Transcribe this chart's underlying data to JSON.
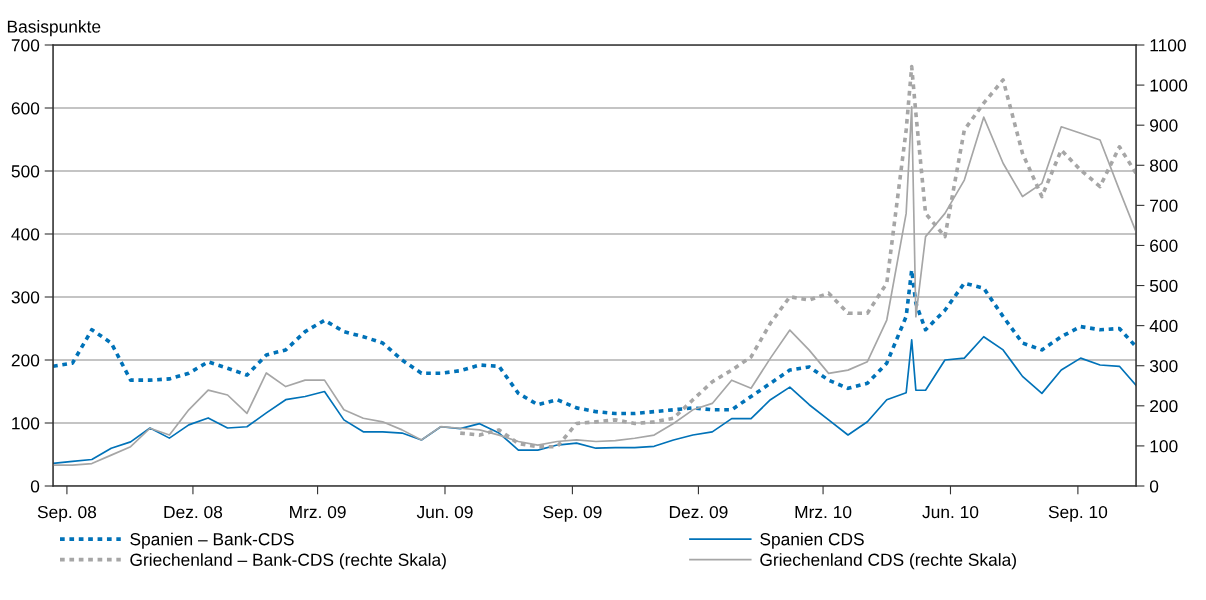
{
  "chart_data": {
    "type": "line",
    "ylabel": "Basispunkte",
    "x": [
      "2008-08-22",
      "2008-09-05",
      "2008-09-19",
      "2008-10-03",
      "2008-10-17",
      "2008-10-31",
      "2008-11-14",
      "2008-11-28",
      "2008-12-12",
      "2008-12-26",
      "2009-01-09",
      "2009-01-23",
      "2009-02-06",
      "2009-02-20",
      "2009-03-06",
      "2009-03-20",
      "2009-04-03",
      "2009-04-17",
      "2009-05-01",
      "2009-05-15",
      "2009-05-29",
      "2009-06-12",
      "2009-06-26",
      "2009-07-10",
      "2009-07-24",
      "2009-08-07",
      "2009-08-21",
      "2009-09-04",
      "2009-09-18",
      "2009-10-02",
      "2009-10-16",
      "2009-10-30",
      "2009-11-13",
      "2009-11-27",
      "2009-12-11",
      "2009-12-25",
      "2010-01-08",
      "2010-01-22",
      "2010-02-05",
      "2010-02-19",
      "2010-03-05",
      "2010-03-19",
      "2010-04-02",
      "2010-04-16",
      "2010-04-30",
      "2010-05-04",
      "2010-05-07",
      "2010-05-14",
      "2010-05-28",
      "2010-06-11",
      "2010-06-25",
      "2010-07-09",
      "2010-07-23",
      "2010-08-06",
      "2010-08-20",
      "2010-09-03",
      "2010-09-17",
      "2010-10-01",
      "2010-10-13"
    ],
    "series": [
      {
        "name": "Spanien – Bank-CDS",
        "color": "#0072b8",
        "line_style": "dotted",
        "values": [
          190,
          195,
          248,
          227,
          168,
          168,
          170,
          179,
          197,
          187,
          176,
          208,
          216,
          245,
          263,
          245,
          237,
          227,
          200,
          179,
          179,
          183,
          192,
          190,
          147,
          129,
          137,
          124,
          118,
          115,
          115,
          118,
          121,
          124,
          121,
          121,
          142,
          163,
          184,
          189,
          168,
          155,
          163,
          195,
          269,
          343,
          290,
          248,
          279,
          322,
          314,
          269,
          227,
          216,
          237,
          253,
          248,
          250,
          221
        ]
      },
      {
        "name": "Griechenland – Bank-CDS (rechte Skala)",
        "color": "#a6a6a6",
        "line_style": "dotted",
        "axis": "y2",
        "values": [
          null,
          null,
          null,
          null,
          null,
          null,
          null,
          null,
          null,
          null,
          null,
          null,
          null,
          null,
          null,
          null,
          null,
          null,
          null,
          null,
          null,
          132,
          127,
          140,
          106,
          98,
          98,
          156,
          160,
          165,
          156,
          160,
          169,
          215,
          260,
          289,
          322,
          406,
          472,
          464,
          481,
          431,
          431,
          506,
          888,
          1046,
          930,
          680,
          622,
          888,
          955,
          1013,
          830,
          722,
          838,
          788,
          747,
          846,
          780
        ]
      },
      {
        "name": "Spanien CDS",
        "color": "#0072b8",
        "line_style": "solid",
        "values": [
          36,
          39,
          42,
          60,
          70,
          92,
          76,
          97,
          108,
          92,
          94,
          116,
          137,
          142,
          150,
          105,
          86,
          86,
          84,
          73,
          94,
          91,
          99,
          84,
          57,
          57,
          65,
          68,
          60,
          61,
          61,
          63,
          73,
          81,
          86,
          107,
          107,
          137,
          157,
          129,
          105,
          81,
          102,
          137,
          148,
          232,
          152,
          152,
          200,
          203,
          237,
          216,
          174,
          147,
          184,
          203,
          192,
          190,
          160
        ]
      },
      {
        "name": "Griechenland CDS (rechte Skala)",
        "color": "#a6a6a6",
        "line_style": "solid",
        "axis": "y2",
        "values": [
          52,
          52,
          56,
          77,
          98,
          144,
          127,
          190,
          239,
          227,
          181,
          282,
          248,
          264,
          264,
          190,
          169,
          160,
          140,
          115,
          148,
          144,
          140,
          127,
          111,
          102,
          111,
          115,
          111,
          113,
          119,
          127,
          156,
          190,
          206,
          264,
          244,
          319,
          389,
          339,
          281,
          289,
          310,
          414,
          680,
          946,
          422,
          622,
          680,
          763,
          920,
          805,
          722,
          755,
          896,
          880,
          863,
          738,
          634
        ]
      }
    ],
    "xlim": [
      "2008-08-22",
      "2010-10-13"
    ],
    "xticks": [
      {
        "value": "2008-09-01",
        "label": "Sep. 08"
      },
      {
        "value": "2008-12-01",
        "label": "Dez. 08"
      },
      {
        "value": "2009-03-01",
        "label": "Mrz. 09"
      },
      {
        "value": "2009-06-01",
        "label": "Jun. 09"
      },
      {
        "value": "2009-09-01",
        "label": "Sep. 09"
      },
      {
        "value": "2009-12-01",
        "label": "Dez. 09"
      },
      {
        "value": "2010-03-01",
        "label": "Mrz. 10"
      },
      {
        "value": "2010-06-01",
        "label": "Jun. 10"
      },
      {
        "value": "2010-09-01",
        "label": "Sep. 10"
      }
    ],
    "ylim": [
      0,
      700
    ],
    "yticks": [
      0,
      100,
      200,
      300,
      400,
      500,
      600,
      700
    ],
    "y2lim": [
      0,
      1100
    ],
    "y2ticks": [
      0,
      100,
      200,
      300,
      400,
      500,
      600,
      700,
      800,
      900,
      1000,
      1100
    ],
    "grid": "y",
    "legend": "bottom"
  }
}
